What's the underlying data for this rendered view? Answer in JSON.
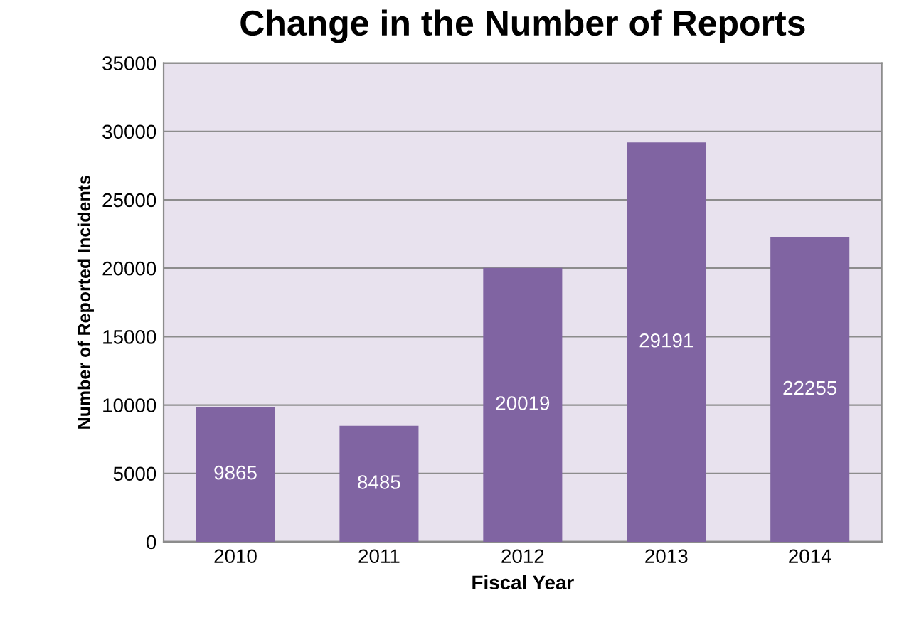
{
  "chart_data": {
    "type": "bar",
    "title": "Change in the Number of Reports",
    "xlabel": "Fiscal Year",
    "ylabel": "Number of Reported Incidents",
    "categories": [
      "2010",
      "2011",
      "2012",
      "2013",
      "2014"
    ],
    "values": [
      9865,
      8485,
      20019,
      29191,
      22255
    ],
    "color": "#8064a2",
    "ylim": [
      0,
      35000
    ],
    "yticks": [
      0,
      5000,
      10000,
      15000,
      20000,
      25000,
      30000,
      35000
    ],
    "grid": "y",
    "data_labels": true,
    "legend": false
  }
}
